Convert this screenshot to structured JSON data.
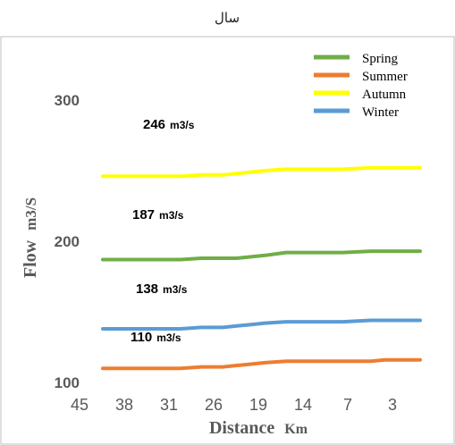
{
  "chart_data": {
    "type": "line",
    "title": "سال",
    "xlabel": {
      "main": "Distance",
      "unit": "Km"
    },
    "ylabel": {
      "main": "Flow",
      "unit": "m3/S"
    },
    "ylim": [
      100,
      300
    ],
    "yticks": [
      100,
      200,
      300
    ],
    "xticks": [
      "45",
      "38",
      "31",
      "26",
      "19",
      "14",
      "7",
      "3"
    ],
    "x": [
      45,
      41,
      38,
      34,
      31,
      28,
      26,
      24,
      22,
      19,
      16,
      14,
      11,
      7,
      5,
      3,
      1,
      0
    ],
    "legend_position": "top-right",
    "grid": false,
    "series": [
      {
        "name": "Spring",
        "color": "#70ad47",
        "values": [
          187,
          187,
          187,
          187,
          188,
          188,
          188,
          189,
          190,
          192,
          192,
          192,
          192,
          193,
          193,
          193,
          193,
          193
        ]
      },
      {
        "name": "Summer",
        "color": "#ed7d31",
        "values": [
          110,
          110,
          110,
          110,
          111,
          111,
          112,
          113,
          114,
          115,
          115,
          115,
          115,
          115,
          116,
          116,
          116,
          116
        ]
      },
      {
        "name": "Autumn",
        "color": "#ffff00",
        "values": [
          246,
          246,
          246,
          246,
          247,
          247,
          248,
          249,
          250,
          251,
          251,
          251,
          251,
          252,
          252,
          252,
          252,
          252
        ]
      },
      {
        "name": "Winter",
        "color": "#5b9bd5",
        "values": [
          138,
          138,
          138,
          138,
          139,
          139,
          140,
          141,
          142,
          143,
          143,
          143,
          143,
          144,
          144,
          144,
          144,
          144
        ]
      }
    ],
    "annotations": [
      {
        "series": "Autumn",
        "value": "246",
        "unit": "m3/s"
      },
      {
        "series": "Spring",
        "value": "187",
        "unit": "m3/s"
      },
      {
        "series": "Winter",
        "value": "138",
        "unit": "m3/s"
      },
      {
        "series": "Summer",
        "value": "110",
        "unit": "m3/s"
      }
    ]
  }
}
